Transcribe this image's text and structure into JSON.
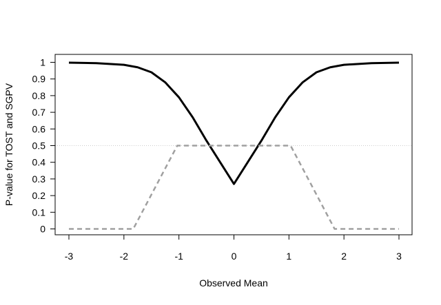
{
  "chart_data": {
    "type": "line",
    "title": "",
    "xlabel": "Observed Mean",
    "ylabel": "P-value for TOST and SGPV",
    "xlim": [
      -3.0,
      3.0
    ],
    "ylim": [
      0.0,
      1.0
    ],
    "x_ticks": [
      -3,
      -2,
      -1,
      0,
      1,
      2,
      3
    ],
    "x_tick_labels": [
      "-3",
      "-2",
      "-1",
      "0",
      "1",
      "2",
      "3"
    ],
    "y_ticks": [
      0,
      0.1,
      0.2,
      0.3,
      0.4,
      0.5,
      0.6,
      0.7,
      0.8,
      0.9,
      1
    ],
    "y_tick_labels": [
      "0",
      "0.1",
      "0.2",
      "0.3",
      "0.4",
      "0.5",
      "0.6",
      "0.7",
      "0.8",
      "0.9",
      "1"
    ],
    "grid": false,
    "reference_lines": [
      {
        "axis": "y",
        "value": 0.5,
        "color": "#cccccc",
        "style": "dotted"
      }
    ],
    "series": [
      {
        "color": "#000000",
        "style": "solid",
        "x": [
          -3.0,
          -2.5,
          -2.0,
          -1.75,
          -1.5,
          -1.25,
          -1.0,
          -0.75,
          -0.5,
          -0.25,
          0.0,
          0.25,
          0.5,
          0.75,
          1.0,
          1.25,
          1.5,
          1.75,
          2.0,
          2.5,
          3.0
        ],
        "y": [
          0.998,
          0.995,
          0.985,
          0.97,
          0.94,
          0.88,
          0.79,
          0.67,
          0.53,
          0.4,
          0.27,
          0.4,
          0.53,
          0.67,
          0.79,
          0.88,
          0.94,
          0.97,
          0.985,
          0.995,
          0.998
        ]
      },
      {
        "color": "#a0a0a0",
        "style": "dashed",
        "x": [
          -3.0,
          -1.83,
          -1.03,
          1.03,
          1.83,
          3.0
        ],
        "y": [
          0.0,
          0.0,
          0.5,
          0.5,
          0.0,
          0.0
        ]
      }
    ]
  }
}
